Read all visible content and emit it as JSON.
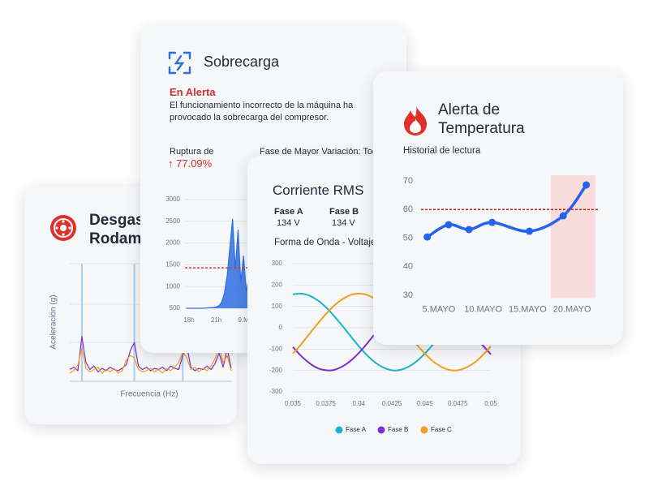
{
  "cards": [
    {
      "title": "Desgaste de Rodamiento"
    },
    {
      "title": "Sobrecarga",
      "status": "En Alerta",
      "description": "El funcionamiento incorrecto de la máquina ha provocado la sobrecarga del compresor.",
      "kpi_label": "Ruptura de",
      "kpi_value": "77.09%",
      "kpi2_label": "Fase de Mayor Variación: Todo"
    },
    {
      "title": "Corriente RMS",
      "phases": [
        {
          "name": "Fase A",
          "value": "134 V"
        },
        {
          "name": "Fase B",
          "value": "134 V"
        }
      ]
    },
    {
      "title": "Alerta de Temperatura"
    }
  ],
  "chart_data": [
    {
      "type": "line",
      "x_label": "Frecuencia (Hz)",
      "y_label": "Aceleración (g)",
      "xlim": [
        0,
        100
      ],
      "ylim": [
        0,
        1
      ],
      "x": [
        0,
        2.5,
        5,
        7.5,
        10,
        12.5,
        15,
        17.5,
        20,
        22.5,
        25,
        27.5,
        30,
        32.5,
        35,
        37.5,
        40,
        42.5,
        45,
        47.5,
        50,
        52.5,
        55,
        57.5,
        60,
        62.5,
        65,
        67.5,
        70,
        72.5,
        75,
        77.5,
        80,
        82.5,
        85,
        87.5,
        90,
        92.5,
        95,
        97.5,
        100
      ],
      "markers": [
        7.5,
        40,
        70
      ],
      "marker_color": "#a9cdf2",
      "series": [
        {
          "color": "#7b2fd0",
          "values": [
            0.1,
            0.12,
            0.09,
            0.38,
            0.16,
            0.1,
            0.13,
            0.08,
            0.11,
            0.09,
            0.12,
            0.1,
            0.09,
            0.11,
            0.14,
            0.26,
            0.33,
            0.13,
            0.1,
            0.12,
            0.09,
            0.11,
            0.1,
            0.12,
            0.09,
            0.13,
            0.11,
            0.1,
            0.22,
            0.3,
            0.12,
            0.09,
            0.11,
            0.1,
            0.13,
            0.1,
            0.15,
            0.24,
            0.12,
            0.28,
            0.11
          ]
        },
        {
          "color": "#f0a020",
          "values": [
            0.07,
            0.09,
            0.14,
            0.28,
            0.11,
            0.08,
            0.1,
            0.12,
            0.07,
            0.1,
            0.08,
            0.11,
            0.07,
            0.09,
            0.18,
            0.22,
            0.2,
            0.1,
            0.08,
            0.09,
            0.11,
            0.08,
            0.1,
            0.07,
            0.11,
            0.09,
            0.12,
            0.16,
            0.25,
            0.2,
            0.1,
            0.12,
            0.08,
            0.11,
            0.09,
            0.13,
            0.19,
            0.3,
            0.16,
            0.22,
            0.09
          ]
        }
      ]
    },
    {
      "type": "area",
      "color": "#2f6fe0",
      "grid": true,
      "xlim": [
        -0.15,
        7
      ],
      "ylim": [
        500,
        3000
      ],
      "yticks": [
        3000,
        2500,
        2000,
        1500,
        1000,
        500
      ],
      "xticks": [
        {
          "value": 0,
          "label": "18h"
        },
        {
          "value": 1,
          "label": "21h"
        },
        {
          "value": 2,
          "label": "9.M"
        }
      ],
      "threshold": 1430,
      "threshold_color": "#d33a3a",
      "x": [
        -0.1,
        0,
        0.1,
        0.2,
        0.3,
        0.4,
        0.5,
        0.6,
        0.7,
        0.8,
        0.9,
        1,
        1.1,
        1.2,
        1.3,
        1.4,
        1.5,
        1.6,
        1.7,
        1.8,
        1.9,
        2,
        2.1,
        2.2
      ],
      "values": [
        500,
        500,
        500,
        500,
        500,
        500,
        500,
        505,
        510,
        515,
        520,
        530,
        560,
        640,
        850,
        1250,
        1900,
        2550,
        1400,
        2300,
        1100,
        1700,
        900,
        1200
      ]
    },
    {
      "type": "line",
      "title": "Forma de Onda - Voltaje",
      "grid": true,
      "legend": "bottom",
      "smooth": true,
      "xlim": [
        0.035,
        0.05
      ],
      "ylim": [
        -300,
        300
      ],
      "yticks": [
        300,
        200,
        100,
        0,
        -100,
        -200,
        -300
      ],
      "xticks": [
        0.035,
        0.0375,
        0.04,
        0.0425,
        0.045,
        0.0475,
        0.05
      ],
      "x": [
        0.035,
        0.0355,
        0.036,
        0.0365,
        0.037,
        0.0375,
        0.038,
        0.0385,
        0.039,
        0.0395,
        0.04,
        0.0405,
        0.041,
        0.0415,
        0.042,
        0.0425,
        0.043,
        0.0435,
        0.044,
        0.0445,
        0.045,
        0.0455,
        0.046,
        0.0465,
        0.047,
        0.0475,
        0.048,
        0.0485,
        0.049,
        0.0495,
        0.05
      ],
      "series": [
        {
          "name": "Fase A",
          "color": "#19b2c8",
          "values": [
            156,
            160,
            156,
            143,
            123,
            96,
            64,
            28,
            -10,
            -49,
            -87,
            -121,
            -151,
            -174,
            -190,
            -199,
            -199,
            -190,
            -174,
            -151,
            -121,
            -87,
            -49,
            -10,
            28,
            64,
            96,
            123,
            143,
            156,
            160
          ]
        },
        {
          "name": "Fase B",
          "color": "#7b2fd0",
          "values": [
            -90,
            -124,
            -153,
            -176,
            -192,
            -199,
            -199,
            -189,
            -172,
            -148,
            -118,
            -83,
            -45,
            -7,
            32,
            67,
            99,
            126,
            145,
            157,
            160,
            155,
            142,
            121,
            94,
            61,
            25,
            -14,
            -53,
            -90,
            -124
          ]
        },
        {
          "name": "Fase C",
          "color": "#f0a020",
          "values": [
            -121,
            -87,
            -49,
            -10,
            28,
            64,
            96,
            123,
            143,
            156,
            160,
            156,
            143,
            123,
            96,
            64,
            28,
            -10,
            -49,
            -87,
            -121,
            -151,
            -174,
            -190,
            -199,
            -199,
            -190,
            -174,
            -151,
            -121,
            -87
          ]
        }
      ]
    },
    {
      "type": "line",
      "title": "Historial de lectura",
      "color": "#2563eb",
      "points": true,
      "smooth": true,
      "xlim": [
        3,
        23
      ],
      "ylim": [
        29,
        72
      ],
      "yticks": [
        70,
        60,
        50,
        40,
        30
      ],
      "xticks": [
        {
          "value": 5,
          "label": "5.MAYO"
        },
        {
          "value": 10,
          "label": "10.MAYO"
        },
        {
          "value": 15,
          "label": "15.MAYO"
        },
        {
          "value": 20,
          "label": "20.MAYO"
        }
      ],
      "threshold": 60,
      "threshold_color": "#c62828",
      "highlight": [
        17.6,
        22.6
      ],
      "highlight_color": "#f9dcdc",
      "x": [
        3.7,
        6.1,
        8.4,
        11,
        15.2,
        19,
        21.6
      ],
      "values": [
        50.4,
        54.7,
        53,
        55.5,
        52.4,
        57.8,
        68.6
      ]
    }
  ]
}
